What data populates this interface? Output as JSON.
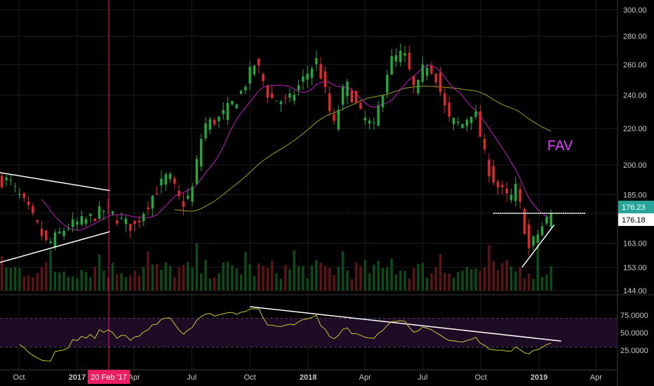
{
  "chart_data": {
    "type": "candlestick",
    "price_axis": {
      "scale": "log",
      "ticks": [
        "300.00",
        "280.00",
        "260.00",
        "240.00",
        "220.00",
        "200.00",
        "185.00",
        "163.00",
        "153.00",
        "144.00"
      ],
      "tick_values": [
        300,
        280,
        260,
        240,
        220,
        200,
        185,
        163,
        153,
        144
      ]
    },
    "time_axis": {
      "labels": [
        "Oct",
        "2017",
        "Apr",
        "Jul",
        "Oct",
        "2018",
        "Apr",
        "Jul",
        "Oct",
        "2019",
        "Apr"
      ],
      "year_labels": [
        "2017",
        "2018",
        "2019"
      ],
      "crosshair_date": "20 Feb '17"
    },
    "rsi_axis": {
      "ticks": [
        "75.0000",
        "50.0000",
        "25.0000"
      ],
      "tick_values": [
        75,
        50,
        25
      ],
      "upper_band": 70,
      "lower_band": 30
    },
    "price_badges": [
      {
        "value": "176.23",
        "bg": "#26a69a",
        "fg": "#ffffff"
      },
      {
        "value": "176.18",
        "bg": "#ffffff",
        "fg": "#000000"
      }
    ],
    "annotation": {
      "text": "FAV",
      "color": "#e040fb"
    },
    "colors": {
      "up": "#26a641",
      "down": "#e0282e",
      "ma_short": "#c218c2",
      "ma_long": "#a0a020",
      "rsi": "#c8c830",
      "trendline": "#ffffff",
      "crosshair": "#e91e63",
      "rsi_band_fill": "#1e0b26"
    },
    "ohlc_keypoints": [
      {
        "t": "2016-09-15",
        "close": 192
      },
      {
        "t": "2016-10-15",
        "close": 178
      },
      {
        "t": "2016-11-15",
        "close": 162
      },
      {
        "t": "2016-12-15",
        "close": 170
      },
      {
        "t": "2017-01-15",
        "close": 173
      },
      {
        "t": "2017-02-15",
        "close": 178
      },
      {
        "t": "2017-03-15",
        "close": 172
      },
      {
        "t": "2017-04-01",
        "close": 170
      },
      {
        "t": "2017-05-01",
        "close": 185
      },
      {
        "t": "2017-05-25",
        "close": 195
      },
      {
        "t": "2017-06-15",
        "close": 180
      },
      {
        "t": "2017-07-01",
        "close": 186
      },
      {
        "t": "2017-07-20",
        "close": 222
      },
      {
        "t": "2017-08-15",
        "close": 226
      },
      {
        "t": "2017-09-15",
        "close": 240
      },
      {
        "t": "2017-10-10",
        "close": 262
      },
      {
        "t": "2017-11-01",
        "close": 238
      },
      {
        "t": "2017-12-01",
        "close": 236
      },
      {
        "t": "2018-01-01",
        "close": 255
      },
      {
        "t": "2018-01-15",
        "close": 263
      },
      {
        "t": "2018-02-10",
        "close": 220
      },
      {
        "t": "2018-03-01",
        "close": 248
      },
      {
        "t": "2018-03-25",
        "close": 228
      },
      {
        "t": "2018-04-15",
        "close": 220
      },
      {
        "t": "2018-05-10",
        "close": 262
      },
      {
        "t": "2018-06-01",
        "close": 268
      },
      {
        "t": "2018-06-20",
        "close": 240
      },
      {
        "t": "2018-07-05",
        "close": 262
      },
      {
        "t": "2018-07-20",
        "close": 255
      },
      {
        "t": "2018-08-10",
        "close": 225
      },
      {
        "t": "2018-09-01",
        "close": 222
      },
      {
        "t": "2018-09-20",
        "close": 232
      },
      {
        "t": "2018-10-10",
        "close": 200
      },
      {
        "t": "2018-10-25",
        "close": 190
      },
      {
        "t": "2018-11-15",
        "close": 182
      },
      {
        "t": "2018-11-25",
        "close": 188
      },
      {
        "t": "2018-12-05",
        "close": 176
      },
      {
        "t": "2018-12-15",
        "close": 160
      },
      {
        "t": "2019-01-01",
        "close": 168
      },
      {
        "t": "2019-01-20",
        "close": 176.23
      }
    ],
    "trendlines": [
      {
        "name": "triangle upper",
        "from": {
          "t": "2016-09-01",
          "price": 196
        },
        "to": {
          "t": "2017-02-22",
          "price": 187
        }
      },
      {
        "name": "triangle lower",
        "from": {
          "t": "2016-09-01",
          "price": 155
        },
        "to": {
          "t": "2017-02-22",
          "price": 168
        }
      },
      {
        "name": "support",
        "from": {
          "t": "2018-10-20",
          "price": 176.23
        },
        "to": {
          "t": "2019-03-15",
          "price": 176.23
        }
      },
      {
        "name": "rising support",
        "from": {
          "t": "2018-12-05",
          "price": 153
        },
        "to": {
          "t": "2019-01-25",
          "price": 171
        }
      }
    ],
    "rsi_trendline": {
      "from": {
        "t": "2017-10-01",
        "value": 87
      },
      "to": {
        "t": "2019-02-05",
        "value": 38
      }
    },
    "rsi_last": 40
  }
}
